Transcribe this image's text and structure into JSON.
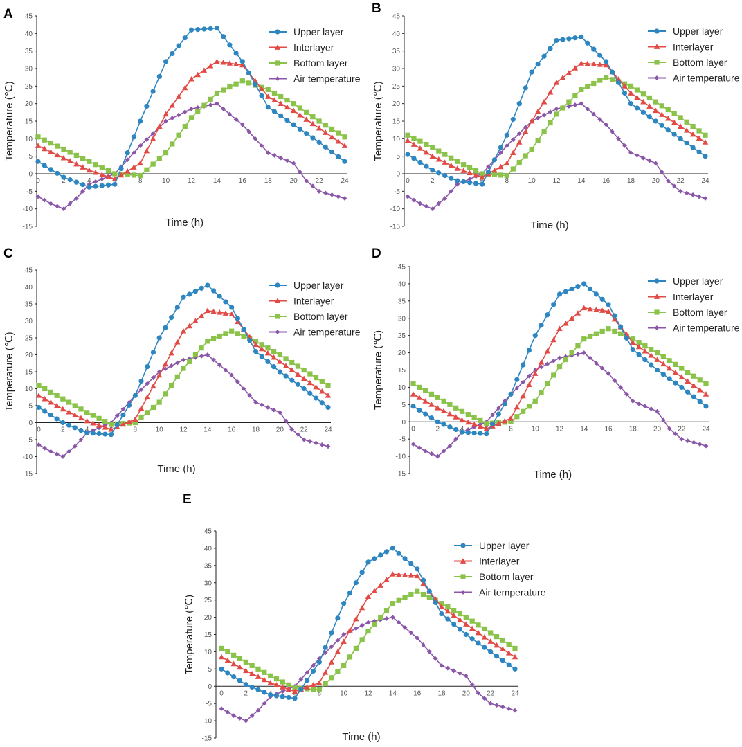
{
  "colors": {
    "upper": "#2e86c1",
    "inter": "#e24a45",
    "bottom": "#8bc34a",
    "air": "#8a56a8"
  },
  "chart_data": [
    {
      "panel": "A",
      "type": "line",
      "xlabel": "Time (h)",
      "ylabel": "Temperature (℃)",
      "xlim": [
        0,
        24
      ],
      "ylim": [
        -15,
        45
      ],
      "x_ticks": [
        "0",
        "2",
        "4",
        "6",
        "8",
        "10",
        "12",
        "14",
        "16",
        "18",
        "20",
        "22",
        "24"
      ],
      "y_ticks": [
        "45",
        "40",
        "35",
        "30",
        "25",
        "20",
        "15",
        "10",
        "5",
        "0",
        "-5",
        "-10",
        "-15"
      ],
      "series": [
        {
          "name": "Upper layer",
          "key": "upper",
          "marker": "circle",
          "x": [
            0,
            2,
            4,
            6,
            8,
            10,
            12,
            14,
            16,
            18,
            20,
            22,
            24
          ],
          "y": [
            3.5,
            -1,
            -3.8,
            -3,
            15,
            32,
            41,
            41.5,
            32,
            19,
            14,
            9,
            3.5
          ]
        },
        {
          "name": "Interlayer",
          "key": "inter",
          "marker": "triangle",
          "x": [
            0,
            2,
            4,
            6,
            8,
            10,
            12,
            14,
            16,
            18,
            20,
            22,
            24
          ],
          "y": [
            8,
            4.5,
            1,
            -1.5,
            3,
            17,
            27,
            32,
            31,
            22,
            18,
            13,
            8
          ]
        },
        {
          "name": "Bottom layer",
          "key": "bottom",
          "marker": "square",
          "x": [
            0,
            2,
            4,
            6,
            8,
            10,
            12,
            14,
            16,
            18,
            20,
            22,
            24
          ],
          "y": [
            10.5,
            7,
            3.5,
            0,
            -0.5,
            6,
            16,
            23,
            26.5,
            24,
            20,
            15,
            10.5
          ]
        },
        {
          "name": "Air temperature",
          "key": "air",
          "marker": "diamond",
          "x": [
            0,
            1,
            2,
            3,
            4,
            6,
            8,
            10,
            12,
            14,
            16,
            18,
            19,
            20,
            21,
            22,
            23,
            24
          ],
          "y": [
            -6.5,
            -8.5,
            -10,
            -7,
            -3,
            0,
            8,
            15,
            18.5,
            20,
            14,
            6,
            4.5,
            3,
            -2,
            -5,
            -6,
            -7
          ]
        }
      ]
    },
    {
      "panel": "B",
      "type": "line",
      "xlabel": "Time (h)",
      "ylabel": "Temperature (℃)",
      "xlim": [
        0,
        24
      ],
      "ylim": [
        -15,
        45
      ],
      "x_ticks": [
        "0",
        "2",
        "4",
        "6",
        "8",
        "10",
        "12",
        "14",
        "16",
        "18",
        "20",
        "22",
        "24"
      ],
      "y_ticks": [
        "45",
        "40",
        "35",
        "30",
        "25",
        "20",
        "15",
        "10",
        "5",
        "0",
        "-5",
        "-10",
        "-15"
      ],
      "series": [
        {
          "name": "Upper layer",
          "key": "upper",
          "marker": "circle",
          "x": [
            0,
            2,
            4,
            6,
            8,
            10,
            12,
            14,
            16,
            18,
            20,
            22,
            24
          ],
          "y": [
            5.5,
            1,
            -2,
            -3,
            11,
            29,
            38,
            39,
            32,
            20,
            15,
            10,
            5
          ]
        },
        {
          "name": "Interlayer",
          "key": "inter",
          "marker": "triangle",
          "x": [
            0,
            2,
            4,
            6,
            8,
            10,
            12,
            14,
            16,
            18,
            20,
            22,
            24
          ],
          "y": [
            9.5,
            5,
            1.5,
            -1,
            3,
            15,
            26,
            31.5,
            31,
            23,
            18,
            13.5,
            9
          ]
        },
        {
          "name": "Bottom layer",
          "key": "bottom",
          "marker": "square",
          "x": [
            0,
            2,
            4,
            6,
            8,
            10,
            12,
            14,
            16,
            18,
            20,
            22,
            24
          ],
          "y": [
            11,
            7.5,
            3.5,
            0,
            -0.5,
            7,
            17,
            24,
            27.5,
            25,
            20.5,
            16,
            11
          ]
        },
        {
          "name": "Air temperature",
          "key": "air",
          "marker": "diamond",
          "x": [
            0,
            1,
            2,
            3,
            4,
            6,
            8,
            10,
            12,
            14,
            16,
            18,
            19,
            20,
            21,
            22,
            23,
            24
          ],
          "y": [
            -6.5,
            -8.5,
            -10,
            -7,
            -3,
            0,
            8,
            15,
            18.5,
            20,
            14,
            6,
            4.5,
            3,
            -2,
            -5,
            -6,
            -7
          ]
        }
      ]
    },
    {
      "panel": "C",
      "type": "line",
      "xlabel": "Time (h)",
      "ylabel": "Temperature (℃)",
      "xlim": [
        0,
        24
      ],
      "ylim": [
        -15,
        45
      ],
      "x_ticks": [
        "0",
        "2",
        "4",
        "6",
        "8",
        "10",
        "12",
        "14",
        "16",
        "18",
        "20",
        "22",
        "24"
      ],
      "y_ticks": [
        "45",
        "40",
        "35",
        "30",
        "25",
        "20",
        "15",
        "10",
        "5",
        "0",
        "-5",
        "-10",
        "-15"
      ],
      "series": [
        {
          "name": "Upper layer",
          "key": "upper",
          "marker": "circle",
          "x": [
            0,
            2,
            4,
            6,
            8,
            10,
            12,
            14,
            16,
            18,
            20,
            22,
            24
          ],
          "y": [
            4.5,
            0,
            -3,
            -3.5,
            8,
            25,
            37,
            40.5,
            34,
            21,
            15,
            10,
            4.5
          ]
        },
        {
          "name": "Interlayer",
          "key": "inter",
          "marker": "triangle",
          "x": [
            0,
            2,
            4,
            6,
            8,
            10,
            12,
            14,
            16,
            18,
            20,
            22,
            24
          ],
          "y": [
            8,
            4,
            0.5,
            -2,
            1,
            14,
            27,
            33,
            32,
            23,
            18,
            13,
            8
          ]
        },
        {
          "name": "Bottom layer",
          "key": "bottom",
          "marker": "square",
          "x": [
            0,
            2,
            4,
            6,
            8,
            10,
            12,
            14,
            16,
            18,
            20,
            22,
            24
          ],
          "y": [
            11,
            7,
            3,
            -0.5,
            0,
            6,
            16,
            24,
            27,
            24,
            20,
            15.5,
            11
          ]
        },
        {
          "name": "Air temperature",
          "key": "air",
          "marker": "diamond",
          "x": [
            0,
            1,
            2,
            3,
            4,
            6,
            8,
            10,
            12,
            14,
            16,
            18,
            19,
            20,
            21,
            22,
            23,
            24
          ],
          "y": [
            -6.5,
            -8.5,
            -10,
            -7,
            -3,
            0,
            8,
            15,
            18.5,
            20,
            14,
            6,
            4.5,
            3,
            -2,
            -5,
            -6,
            -7
          ]
        }
      ]
    },
    {
      "panel": "D",
      "type": "line",
      "xlabel": "Time (h)",
      "ylabel": "Temperature (℃)",
      "xlim": [
        0,
        24
      ],
      "ylim": [
        -15,
        45
      ],
      "x_ticks": [
        "0",
        "2",
        "4",
        "6",
        "8",
        "10",
        "12",
        "14",
        "16",
        "18",
        "20",
        "22",
        "24"
      ],
      "y_ticks": [
        "45",
        "40",
        "35",
        "30",
        "25",
        "20",
        "15",
        "10",
        "5",
        "0",
        "-5",
        "-10",
        "-15"
      ],
      "series": [
        {
          "name": "Upper layer",
          "key": "upper",
          "marker": "circle",
          "x": [
            0,
            2,
            4,
            6,
            8,
            10,
            12,
            14,
            16,
            18,
            20,
            22,
            24
          ],
          "y": [
            4.5,
            0,
            -3,
            -3.5,
            8,
            25,
            37,
            40,
            34,
            21,
            15,
            10,
            4.5
          ]
        },
        {
          "name": "Interlayer",
          "key": "inter",
          "marker": "triangle",
          "x": [
            0,
            2,
            4,
            6,
            8,
            10,
            12,
            14,
            16,
            18,
            20,
            22,
            24
          ],
          "y": [
            8,
            4,
            0.5,
            -2,
            1,
            14,
            27,
            33,
            32,
            23,
            18,
            13,
            8
          ]
        },
        {
          "name": "Bottom layer",
          "key": "bottom",
          "marker": "square",
          "x": [
            0,
            2,
            4,
            6,
            8,
            10,
            12,
            14,
            16,
            18,
            20,
            22,
            24
          ],
          "y": [
            11,
            7,
            3,
            -0.5,
            0,
            6,
            16,
            24,
            27,
            24,
            20,
            15.5,
            11
          ]
        },
        {
          "name": "Air temperature",
          "key": "air",
          "marker": "diamond",
          "x": [
            0,
            1,
            2,
            3,
            4,
            6,
            8,
            10,
            12,
            14,
            16,
            18,
            19,
            20,
            21,
            22,
            23,
            24
          ],
          "y": [
            -6.5,
            -8.5,
            -10,
            -7,
            -3,
            0,
            8,
            15,
            18.5,
            20,
            14,
            6,
            4.5,
            3,
            -2,
            -5,
            -6,
            -7
          ]
        }
      ]
    },
    {
      "panel": "E",
      "type": "line",
      "xlabel": "Time (h)",
      "ylabel": "Temperature (℃)",
      "xlim": [
        0,
        24
      ],
      "ylim": [
        -15,
        45
      ],
      "x_ticks": [
        "0",
        "2",
        "4",
        "6",
        "8",
        "10",
        "12",
        "14",
        "16",
        "18",
        "20",
        "22",
        "24"
      ],
      "y_ticks": [
        "45",
        "40",
        "35",
        "30",
        "25",
        "20",
        "15",
        "10",
        "5",
        "0",
        "-5",
        "-10",
        "-15"
      ],
      "series": [
        {
          "name": "Upper layer",
          "key": "upper",
          "marker": "circle",
          "x": [
            0,
            2,
            4,
            6,
            8,
            10,
            12,
            14,
            16,
            18,
            20,
            22,
            24
          ],
          "y": [
            5,
            0.5,
            -2.5,
            -3.5,
            7,
            24,
            36,
            40,
            34,
            21,
            15,
            10,
            5
          ]
        },
        {
          "name": "Interlayer",
          "key": "inter",
          "marker": "triangle",
          "x": [
            0,
            2,
            4,
            6,
            8,
            10,
            12,
            14,
            16,
            18,
            20,
            22,
            24
          ],
          "y": [
            8.5,
            4.5,
            1,
            -1.5,
            1,
            13,
            26,
            32.5,
            32,
            23,
            18,
            13,
            8.5
          ]
        },
        {
          "name": "Bottom layer",
          "key": "bottom",
          "marker": "square",
          "x": [
            0,
            2,
            4,
            6,
            8,
            10,
            12,
            14,
            16,
            18,
            20,
            22,
            24
          ],
          "y": [
            11,
            7,
            3,
            -0.5,
            -1,
            6,
            16,
            24,
            27.5,
            24,
            20,
            15.5,
            11
          ]
        },
        {
          "name": "Air temperature",
          "key": "air",
          "marker": "diamond",
          "x": [
            0,
            1,
            2,
            3,
            4,
            6,
            8,
            10,
            12,
            14,
            16,
            18,
            19,
            20,
            21,
            22,
            23,
            24
          ],
          "y": [
            -6.5,
            -8.5,
            -10,
            -7,
            -3,
            0,
            8,
            15,
            18.5,
            20,
            14,
            6,
            4.5,
            3,
            -2,
            -5,
            -6,
            -7
          ]
        }
      ]
    }
  ]
}
